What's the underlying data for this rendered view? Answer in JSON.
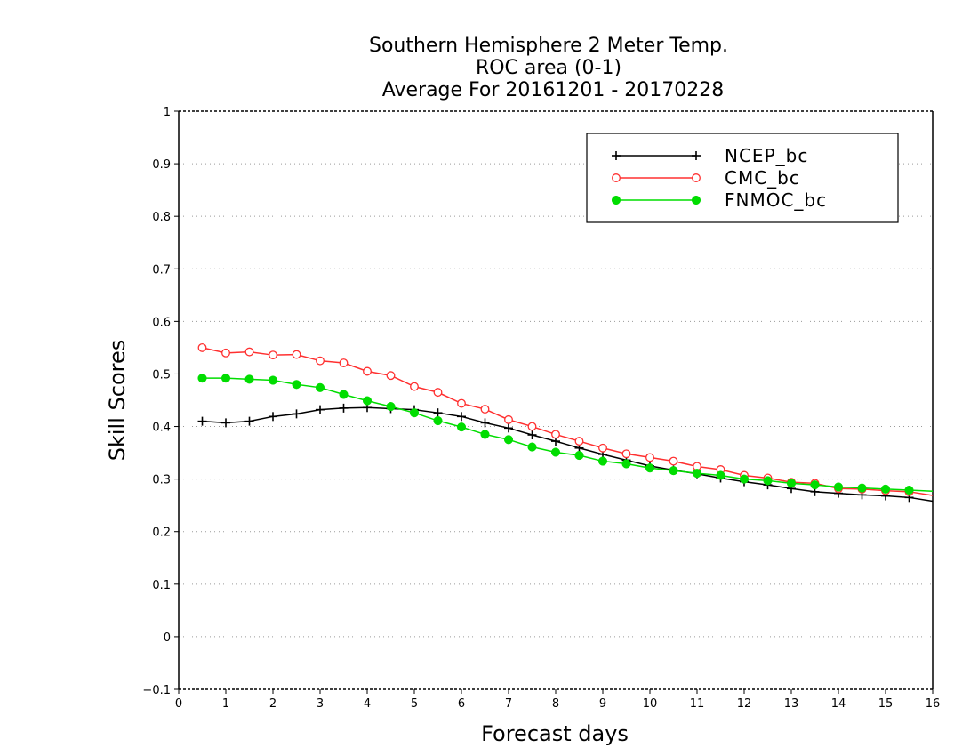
{
  "chart_data": {
    "type": "line",
    "title_lines": [
      "Southern Hemisphere 2 Meter Temp.",
      "ROC area (0-1)",
      "Average For 20161201 - 20170228"
    ],
    "xlabel": "Forecast days",
    "ylabel": "Skill Scores",
    "xlim": [
      0,
      16
    ],
    "ylim": [
      -0.1,
      1
    ],
    "xticks": [
      0,
      1,
      2,
      3,
      4,
      5,
      6,
      7,
      8,
      9,
      10,
      11,
      12,
      13,
      14,
      15,
      16
    ],
    "xtick_labels": [
      "0",
      "1",
      "2",
      "3",
      "4",
      "5",
      "6",
      "7",
      "8",
      "9",
      "10",
      "11",
      "12",
      "13",
      "14",
      "15",
      "16"
    ],
    "yticks": [
      -0.1,
      0,
      0.1,
      0.2,
      0.3,
      0.4,
      0.5,
      0.6,
      0.7,
      0.8,
      0.9,
      1
    ],
    "ytick_labels": [
      "-0.1",
      "0",
      "0.1",
      "0.2",
      "0.3",
      "0.4",
      "0.5",
      "0.6",
      "0.7",
      "0.8",
      "0.9",
      "1"
    ],
    "grid": "horizontal dotted",
    "legend_position": "top-right",
    "x": [
      0.5,
      1,
      1.5,
      2,
      2.5,
      3,
      3.5,
      4,
      4.5,
      5,
      5.5,
      6,
      6.5,
      7,
      7.5,
      8,
      8.5,
      9,
      9.5,
      10,
      10.5,
      11,
      11.5,
      12,
      12.5,
      13,
      13.5,
      14,
      14.5,
      15,
      15.5,
      16
    ],
    "series": [
      {
        "name": "NCEP_bc",
        "color": "#000000",
        "marker": "plus",
        "values": [
          0.41,
          0.407,
          0.41,
          0.419,
          0.424,
          0.432,
          0.435,
          0.436,
          0.434,
          0.432,
          0.426,
          0.419,
          0.407,
          0.397,
          0.384,
          0.372,
          0.359,
          0.347,
          0.336,
          0.325,
          0.317,
          0.31,
          0.302,
          0.295,
          0.289,
          0.282,
          0.276,
          0.273,
          0.27,
          0.268,
          0.265,
          0.258
        ]
      },
      {
        "name": "CMC_bc",
        "color": "#ff3030",
        "marker": "open-circle",
        "values": [
          0.55,
          0.54,
          0.542,
          0.536,
          0.537,
          0.525,
          0.521,
          0.505,
          0.497,
          0.476,
          0.465,
          0.444,
          0.433,
          0.413,
          0.4,
          0.385,
          0.372,
          0.359,
          0.348,
          0.341,
          0.334,
          0.324,
          0.318,
          0.307,
          0.302,
          0.294,
          0.292,
          0.282,
          0.281,
          0.278,
          0.276,
          0.269
        ]
      },
      {
        "name": "FNMOC_bc",
        "color": "#00dd00",
        "marker": "filled-circle",
        "values": [
          0.492,
          0.492,
          0.49,
          0.488,
          0.48,
          0.474,
          0.461,
          0.449,
          0.438,
          0.426,
          0.411,
          0.399,
          0.385,
          0.375,
          0.361,
          0.351,
          0.345,
          0.334,
          0.329,
          0.321,
          0.316,
          0.311,
          0.307,
          0.3,
          0.297,
          0.292,
          0.289,
          0.285,
          0.283,
          0.281,
          0.279,
          0.277
        ]
      }
    ]
  }
}
